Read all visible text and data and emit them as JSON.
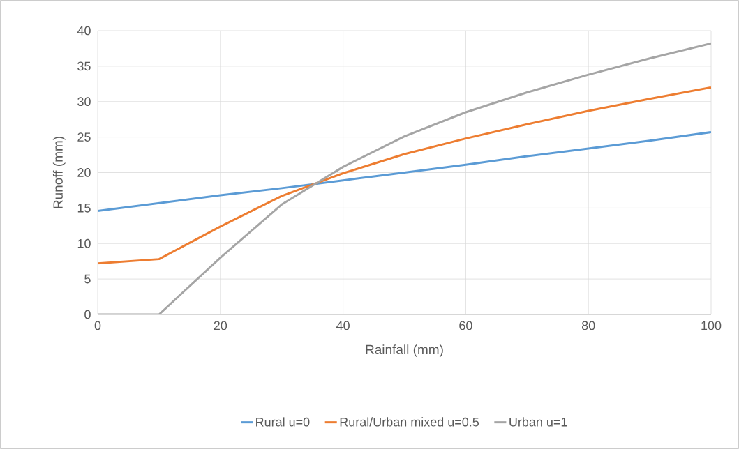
{
  "chart_data": {
    "type": "line",
    "xlabel": "Rainfall (mm)",
    "ylabel": "Runoff (mm)",
    "x": [
      0,
      10,
      20,
      30,
      40,
      50,
      60,
      70,
      80,
      90,
      100
    ],
    "series": [
      {
        "name": "Rural u=0",
        "color": "#5b9bd5",
        "values": [
          14.6,
          15.7,
          16.8,
          17.8,
          18.9,
          20.0,
          21.1,
          22.3,
          23.4,
          24.5,
          25.7
        ]
      },
      {
        "name": "Rural/Urban mixed u=0.5",
        "color": "#ed7d31",
        "values": [
          7.2,
          7.8,
          12.4,
          16.7,
          19.9,
          22.6,
          24.8,
          26.8,
          28.7,
          30.4,
          32.0
        ]
      },
      {
        "name": "Urban u=1",
        "color": "#a5a5a5",
        "values": [
          0,
          0,
          8.0,
          15.5,
          20.8,
          25.1,
          28.5,
          31.3,
          33.8,
          36.1,
          38.2
        ]
      }
    ],
    "xlim": [
      0,
      100
    ],
    "ylim": [
      0,
      40
    ],
    "xticks": [
      0,
      20,
      40,
      60,
      80,
      100
    ],
    "yticks": [
      0,
      5,
      10,
      15,
      20,
      25,
      30,
      35,
      40
    ],
    "grid": true,
    "legend": "bottom",
    "marker": "none",
    "line_style": "solid"
  }
}
